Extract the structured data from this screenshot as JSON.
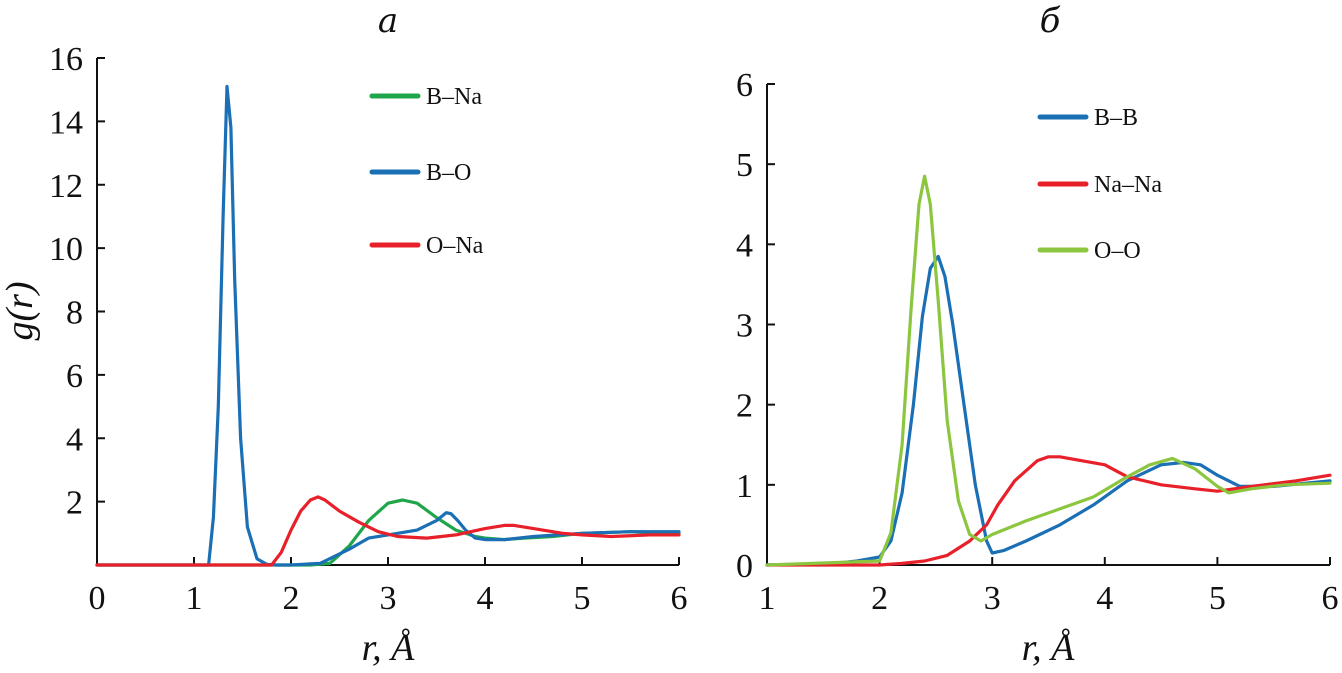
{
  "chart_data": [
    {
      "type": "line",
      "title": "а",
      "xlabel": "r, Å",
      "ylabel": "g(r)",
      "xlim": [
        0,
        6
      ],
      "ylim": [
        0,
        16
      ],
      "xticks": [
        0,
        1,
        2,
        3,
        4,
        5,
        6
      ],
      "yticks": [
        2,
        4,
        6,
        8,
        10,
        12,
        14,
        16
      ],
      "grid": false,
      "legend_position": "top-right",
      "series": [
        {
          "name": "B–Na",
          "color": "#1fa64a",
          "x": [
            0,
            2.2,
            2.4,
            2.6,
            2.8,
            3.0,
            3.15,
            3.3,
            3.5,
            3.7,
            3.9,
            4.0,
            4.2,
            4.4,
            4.7,
            5.0,
            5.5,
            6.0
          ],
          "y": [
            0,
            0,
            0.05,
            0.6,
            1.4,
            1.95,
            2.05,
            1.95,
            1.5,
            1.1,
            0.9,
            0.85,
            0.8,
            0.85,
            0.9,
            1.0,
            1.05,
            1.0
          ]
        },
        {
          "name": "B–O",
          "color": "#1a6fb5",
          "x": [
            0,
            1.15,
            1.2,
            1.25,
            1.3,
            1.34,
            1.38,
            1.42,
            1.48,
            1.55,
            1.65,
            1.75,
            1.85,
            2.0,
            2.3,
            2.6,
            2.8,
            3.0,
            3.3,
            3.5,
            3.6,
            3.65,
            3.72,
            3.8,
            3.9,
            4.0,
            4.2,
            4.5,
            5.0,
            5.5,
            6.0
          ],
          "y": [
            0,
            0,
            1.5,
            5,
            11,
            15.1,
            13.8,
            9,
            4,
            1.2,
            0.2,
            0.02,
            0,
            0,
            0.05,
            0.5,
            0.85,
            0.95,
            1.1,
            1.4,
            1.65,
            1.62,
            1.4,
            1.1,
            0.85,
            0.8,
            0.8,
            0.9,
            1.0,
            1.05,
            1.05
          ]
        },
        {
          "name": "O–Na",
          "color": "#e8202a",
          "x": [
            0,
            1.8,
            1.9,
            2.0,
            2.1,
            2.2,
            2.28,
            2.35,
            2.5,
            2.7,
            2.9,
            3.1,
            3.4,
            3.7,
            4.0,
            4.2,
            4.3,
            4.5,
            4.8,
            5.0,
            5.3,
            5.7,
            6.0
          ],
          "y": [
            0,
            0,
            0.4,
            1.1,
            1.7,
            2.05,
            2.15,
            2.05,
            1.7,
            1.35,
            1.05,
            0.9,
            0.85,
            0.95,
            1.15,
            1.25,
            1.25,
            1.15,
            1.0,
            0.95,
            0.9,
            0.95,
            0.95
          ]
        }
      ]
    },
    {
      "type": "line",
      "title": "б",
      "xlabel": "r, Å",
      "ylabel": "",
      "xlim": [
        1,
        6
      ],
      "ylim": [
        0,
        6
      ],
      "xticks": [
        1,
        2,
        3,
        4,
        5,
        6
      ],
      "yticks": [
        0,
        1,
        2,
        3,
        4,
        5,
        6
      ],
      "grid": false,
      "legend_position": "top-right",
      "series": [
        {
          "name": "B–B",
          "color": "#1a6fb5",
          "x": [
            1,
            1.6,
            1.8,
            2.0,
            2.1,
            2.2,
            2.3,
            2.38,
            2.45,
            2.52,
            2.58,
            2.65,
            2.75,
            2.85,
            2.95,
            3.0,
            3.1,
            3.3,
            3.6,
            3.9,
            4.2,
            4.5,
            4.7,
            4.85,
            5.0,
            5.2,
            5.5,
            6.0
          ],
          "y": [
            0,
            0.02,
            0.05,
            0.1,
            0.3,
            0.9,
            2.0,
            3.1,
            3.7,
            3.85,
            3.6,
            3.0,
            2.0,
            1.0,
            0.3,
            0.15,
            0.18,
            0.3,
            0.5,
            0.75,
            1.05,
            1.25,
            1.28,
            1.25,
            1.12,
            0.98,
            0.98,
            1.05
          ]
        },
        {
          "name": "Na–Na",
          "color": "#e8202a",
          "x": [
            1,
            2.0,
            2.2,
            2.4,
            2.6,
            2.8,
            2.95,
            3.05,
            3.2,
            3.4,
            3.5,
            3.6,
            3.8,
            4.0,
            4.2,
            4.5,
            4.8,
            5.0,
            5.3,
            5.7,
            6.0
          ],
          "y": [
            0,
            0,
            0.02,
            0.05,
            0.12,
            0.3,
            0.5,
            0.75,
            1.05,
            1.3,
            1.35,
            1.35,
            1.3,
            1.25,
            1.1,
            1.0,
            0.95,
            0.92,
            0.98,
            1.05,
            1.12
          ]
        },
        {
          "name": "O–O",
          "color": "#8cc63f",
          "x": [
            1,
            2.0,
            2.1,
            2.2,
            2.28,
            2.35,
            2.4,
            2.45,
            2.52,
            2.6,
            2.7,
            2.8,
            2.9,
            3.0,
            3.3,
            3.6,
            3.9,
            4.2,
            4.4,
            4.6,
            4.8,
            5.0,
            5.1,
            5.3,
            5.6,
            6.0
          ],
          "y": [
            0,
            0.05,
            0.4,
            1.5,
            3.2,
            4.5,
            4.85,
            4.5,
            3.3,
            1.8,
            0.8,
            0.38,
            0.3,
            0.38,
            0.55,
            0.7,
            0.85,
            1.1,
            1.25,
            1.33,
            1.2,
            0.98,
            0.9,
            0.95,
            1.0,
            1.02
          ]
        }
      ]
    }
  ]
}
